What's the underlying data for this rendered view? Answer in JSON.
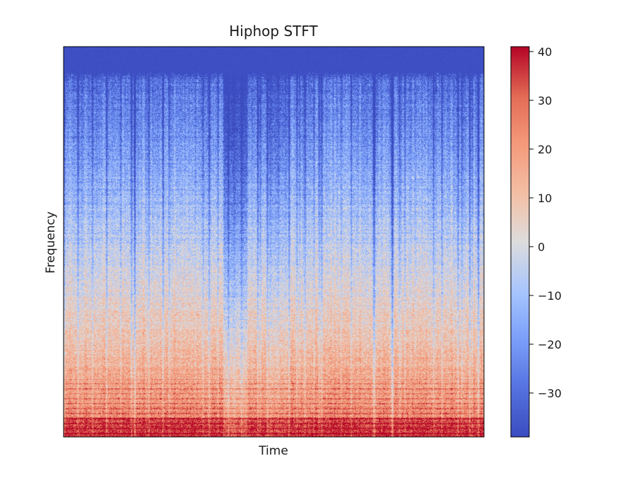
{
  "chart_data": {
    "type": "heatmap",
    "title": "Hiphop STFT",
    "xlabel": "Time",
    "ylabel": "Frequency",
    "colormap": "coolwarm",
    "colors": {
      "low": "#3b4cc0",
      "mid": "#dddddd",
      "high": "#b40426"
    },
    "colorbar": {
      "range": [
        -39,
        41
      ],
      "ticks": [
        40,
        30,
        20,
        10,
        0,
        -10,
        -20,
        -30
      ],
      "tick_labels": [
        "40",
        "30",
        "20",
        "10",
        "0",
        "−10",
        "−20",
        "−30"
      ]
    }
  }
}
